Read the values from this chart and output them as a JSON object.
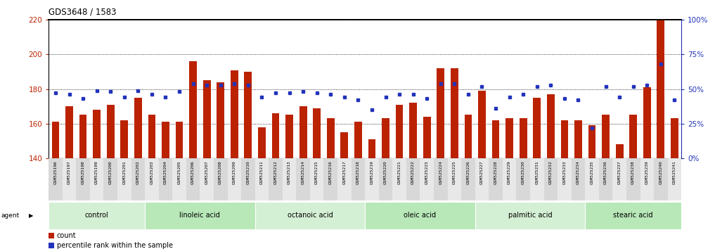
{
  "title": "GDS3648 / 1583",
  "samples": [
    "GSM525196",
    "GSM525197",
    "GSM525198",
    "GSM525199",
    "GSM525200",
    "GSM525201",
    "GSM525202",
    "GSM525203",
    "GSM525204",
    "GSM525205",
    "GSM525206",
    "GSM525207",
    "GSM525208",
    "GSM525209",
    "GSM525210",
    "GSM525211",
    "GSM525212",
    "GSM525213",
    "GSM525214",
    "GSM525215",
    "GSM525216",
    "GSM525217",
    "GSM525218",
    "GSM525219",
    "GSM525220",
    "GSM525221",
    "GSM525222",
    "GSM525223",
    "GSM525224",
    "GSM525225",
    "GSM525226",
    "GSM525227",
    "GSM525228",
    "GSM525229",
    "GSM525230",
    "GSM525231",
    "GSM525232",
    "GSM525233",
    "GSM525234",
    "GSM525235",
    "GSM525236",
    "GSM525237",
    "GSM525238",
    "GSM525239",
    "GSM525240",
    "GSM525241"
  ],
  "counts": [
    161,
    170,
    165,
    168,
    171,
    162,
    175,
    165,
    161,
    161,
    196,
    185,
    184,
    191,
    190,
    158,
    166,
    165,
    170,
    169,
    163,
    155,
    161,
    151,
    163,
    171,
    172,
    164,
    192,
    192,
    165,
    179,
    162,
    163,
    163,
    175,
    177,
    162,
    162,
    159,
    165,
    148,
    165,
    181,
    220,
    163
  ],
  "percentiles": [
    47,
    46,
    43,
    49,
    48,
    44,
    49,
    46,
    44,
    48,
    54,
    53,
    53,
    54,
    53,
    44,
    47,
    47,
    48,
    47,
    46,
    44,
    42,
    35,
    44,
    46,
    46,
    43,
    54,
    54,
    46,
    52,
    36,
    44,
    46,
    52,
    53,
    43,
    42,
    22,
    52,
    44,
    52,
    53,
    68,
    42
  ],
  "groups": [
    {
      "label": "control",
      "start": 0,
      "end": 7,
      "color": "#d4f0d4"
    },
    {
      "label": "linoleic acid",
      "start": 7,
      "end": 15,
      "color": "#b8e8b8"
    },
    {
      "label": "octanoic acid",
      "start": 15,
      "end": 23,
      "color": "#d4f0d4"
    },
    {
      "label": "oleic acid",
      "start": 23,
      "end": 31,
      "color": "#b8e8b8"
    },
    {
      "label": "palmitic acid",
      "start": 31,
      "end": 39,
      "color": "#d4f0d4"
    },
    {
      "label": "stearic acid",
      "start": 39,
      "end": 46,
      "color": "#b8e8b8"
    }
  ],
  "bar_color": "#bb2200",
  "dot_color": "#2233bb",
  "ylim_left": [
    140,
    220
  ],
  "yticks_left": [
    140,
    160,
    180,
    200,
    220
  ],
  "ylim_right": [
    0,
    100
  ],
  "yticks_right": [
    0,
    25,
    50,
    75,
    100
  ],
  "bar_bottom": 140,
  "background_color": "#ffffff"
}
